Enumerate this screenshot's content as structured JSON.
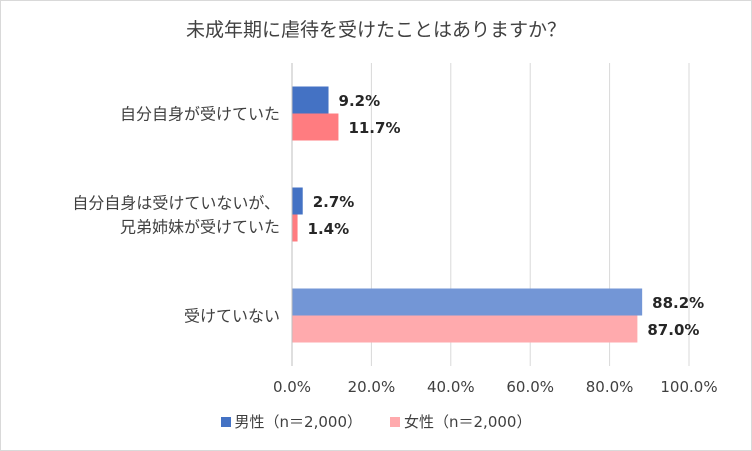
{
  "chart_data": {
    "type": "bar",
    "orientation": "horizontal",
    "title": "未成年期に虐待を受けたことはありますか？",
    "categories": [
      [
        "自分自身が受けていた"
      ],
      [
        "自分自身は受けていないが、",
        "兄弟姉妹が受けていた"
      ],
      [
        "受けていない"
      ]
    ],
    "series": [
      {
        "name": "男性（n＝2,000）",
        "values": [
          9.2,
          2.7,
          88.2
        ],
        "labels": [
          "9.2%",
          "2.7%",
          "88.2%"
        ],
        "color": "#4472c4",
        "color_alt": "#7396d6"
      },
      {
        "name": "女性（n＝2,000）",
        "values": [
          11.7,
          1.4,
          87.0
        ],
        "labels": [
          "11.7%",
          "1.4%",
          "87.0%"
        ],
        "color": "#ff7c80",
        "color_alt": "#ffaaad"
      }
    ],
    "xlim": [
      0,
      100
    ],
    "xticks": [
      "0.0%",
      "20.0%",
      "40.0%",
      "60.0%",
      "80.0%",
      "100.0%"
    ],
    "grid": true,
    "legend": "bottom"
  }
}
